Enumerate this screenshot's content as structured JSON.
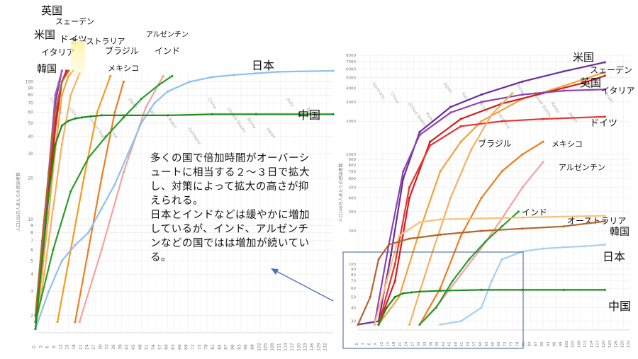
{
  "annotation": "多くの国で倍加時間がオーバーシュートに相当する２～３日で拡大し、対策によって拡大の高さが抑えられる。\n日本とインドなどは緩やかに増加しているが、インド、アルゼンチンなどの国ではは増加が続いている。",
  "left_ylabel": "人口100万人あたりの感染者数",
  "right_ylabel": "人口100万人あたりの感染者数",
  "watermark_labels": [
    "Germany",
    "China",
    "United States",
    "Korea",
    "Japan",
    "Italy",
    "Brazil"
  ],
  "chart_data": [
    {
      "type": "line",
      "yscale": "log",
      "ylim": [
        1.5,
        120
      ],
      "xlim": [
        0,
        135
      ],
      "xticks": [
        0,
        3,
        6,
        9,
        12,
        15,
        18,
        21,
        24,
        27,
        30,
        33,
        36,
        39,
        42,
        45,
        48,
        51,
        54,
        57,
        60,
        63,
        66,
        69,
        72,
        75,
        78,
        81,
        84,
        87,
        90,
        93,
        96,
        99,
        102,
        105,
        108,
        111,
        114,
        117,
        120,
        123,
        126,
        129,
        132
      ],
      "yticks": [
        2,
        3,
        4,
        5,
        6,
        7,
        8,
        9,
        10,
        20,
        30,
        40,
        50,
        60,
        70,
        80,
        90,
        100
      ],
      "grid": true,
      "series": [
        {
          "name": "英国",
          "color": "#e8322e",
          "x": [
            0,
            3,
            6,
            9,
            12,
            15
          ],
          "y": [
            2,
            5,
            15,
            45,
            100,
            120
          ]
        },
        {
          "name": "スェーデン",
          "color": "#f2a33a",
          "x": [
            0,
            3,
            6,
            9,
            12,
            15,
            17
          ],
          "y": [
            1.8,
            4,
            11,
            32,
            80,
            110,
            120
          ]
        },
        {
          "name": "米国",
          "color": "#7b3ea3",
          "x": [
            0,
            3,
            6,
            9,
            12
          ],
          "y": [
            2,
            6,
            20,
            70,
            120
          ]
        },
        {
          "name": "ドイツ",
          "color": "#d61c1c",
          "x": [
            0,
            3,
            6,
            9,
            12,
            14
          ],
          "y": [
            1.8,
            5,
            16,
            50,
            100,
            120
          ]
        },
        {
          "name": "オーストラリア",
          "color": "#f5b060",
          "x": [
            0,
            4,
            8,
            12,
            16,
            20
          ],
          "y": [
            1.6,
            4,
            12,
            35,
            80,
            115
          ]
        },
        {
          "name": "イタリア",
          "color": "#9b59c9",
          "x": [
            0,
            3,
            6,
            9,
            12
          ],
          "y": [
            2,
            6,
            22,
            80,
            120
          ]
        },
        {
          "name": "韓国",
          "color": "#b5652a",
          "x": [
            0,
            3,
            6,
            9,
            12,
            15
          ],
          "y": [
            2,
            7,
            22,
            60,
            100,
            120
          ]
        },
        {
          "name": "ブラジル",
          "color": "#f39c1e",
          "x": [
            10,
            16,
            22,
            28,
            34
          ],
          "y": [
            1.8,
            6,
            20,
            60,
            110
          ]
        },
        {
          "name": "メキシコ",
          "color": "#f07c20",
          "x": [
            18,
            24,
            30,
            36,
            40
          ],
          "y": [
            1.8,
            6,
            20,
            60,
            100
          ]
        },
        {
          "name": "アルゼンチン",
          "color": "#f4a2a2",
          "x": [
            20,
            30,
            40,
            50,
            58
          ],
          "y": [
            1.8,
            6,
            22,
            65,
            110
          ]
        },
        {
          "name": "インド",
          "color": "#2a9d2a",
          "x": [
            0,
            8,
            16,
            24,
            32,
            40,
            48,
            56,
            62
          ],
          "y": [
            1.8,
            6,
            16,
            28,
            40,
            55,
            75,
            95,
            110
          ]
        },
        {
          "name": "日本",
          "color": "#90c0e8",
          "x": [
            0,
            6,
            12,
            18,
            24,
            30,
            36,
            42,
            48,
            54,
            60,
            70,
            80,
            90,
            100,
            110,
            135
          ],
          "y": [
            1.6,
            3,
            5,
            6.5,
            8,
            12,
            18,
            30,
            50,
            70,
            85,
            100,
            108,
            112,
            115,
            118,
            120
          ]
        },
        {
          "name": "中国",
          "color": "#1c8e1c",
          "x": [
            0,
            3,
            6,
            9,
            12,
            15,
            18,
            21,
            25,
            30,
            40,
            60,
            80,
            100,
            120,
            135
          ],
          "y": [
            1.6,
            5,
            15,
            35,
            48,
            52,
            54,
            55,
            56,
            57,
            57,
            57,
            58,
            58,
            58,
            58
          ]
        }
      ]
    },
    {
      "type": "line",
      "yscale": "log",
      "ylim": [
        25,
        8000
      ],
      "xlim": [
        0,
        132
      ],
      "xticks": [
        0,
        3,
        6,
        9,
        12,
        15,
        18,
        21,
        24,
        27,
        30,
        33,
        36,
        39,
        42,
        45,
        48,
        51,
        54,
        57,
        60,
        63,
        66,
        69,
        72,
        75,
        78,
        81,
        84,
        87,
        90,
        93,
        96,
        99,
        102,
        105,
        108,
        111,
        114,
        117,
        120,
        123,
        126,
        129,
        132
      ],
      "yticks": [
        30,
        40,
        50,
        60,
        70,
        80,
        90,
        100,
        200,
        300,
        400,
        500,
        600,
        700,
        800,
        900,
        1000,
        2000,
        3000,
        4000,
        5000,
        6000,
        7000,
        8000
      ],
      "grid": true,
      "inset_box": "lower-left",
      "series": [
        {
          "name": "米国",
          "color": "#6a2da0",
          "x": [
            0,
            10,
            16,
            22,
            30,
            45,
            60,
            80,
            100,
            120
          ],
          "y": [
            28,
            30,
            120,
            600,
            1600,
            2700,
            3500,
            4600,
            5700,
            6900
          ]
        },
        {
          "name": "スェーデン",
          "color": "#f2a33a",
          "x": [
            10,
            20,
            30,
            40,
            50,
            60,
            80,
            100,
            120
          ],
          "y": [
            28,
            50,
            200,
            700,
            1300,
            2000,
            3200,
            4200,
            5600
          ]
        },
        {
          "name": "英国",
          "color": "#d61c1c",
          "x": [
            10,
            18,
            25,
            35,
            50,
            70,
            90,
            110,
            120
          ],
          "y": [
            28,
            70,
            400,
            1300,
            2100,
            2900,
            3600,
            4500,
            5200
          ]
        },
        {
          "name": "イタリア",
          "color": "#8e44ad",
          "x": [
            8,
            15,
            22,
            30,
            45,
            60,
            80,
            100,
            120
          ],
          "y": [
            28,
            150,
            700,
            1500,
            2400,
            3000,
            3500,
            3800,
            3900
          ]
        },
        {
          "name": "ドイツ",
          "color": "#e8322e",
          "x": [
            10,
            18,
            25,
            35,
            50,
            70,
            90,
            120
          ],
          "y": [
            28,
            100,
            500,
            1200,
            1800,
            2000,
            2100,
            2200
          ]
        },
        {
          "name": "ブラジル",
          "color": "#f5b060",
          "x": [
            25,
            35,
            45,
            55,
            65,
            75
          ],
          "y": [
            28,
            110,
            400,
            1100,
            2300,
            3600
          ]
        },
        {
          "name": "メキシコ",
          "color": "#f07c20",
          "x": [
            30,
            40,
            50,
            60,
            70,
            80,
            90
          ],
          "y": [
            28,
            60,
            180,
            400,
            700,
            1000,
            1300
          ]
        },
        {
          "name": "アルゼンチン",
          "color": "#f4a2a2",
          "x": [
            30,
            40,
            50,
            60,
            70,
            80,
            90
          ],
          "y": [
            28,
            45,
            80,
            140,
            260,
            500,
            850
          ]
        },
        {
          "name": "インド",
          "color": "#2a9d2a",
          "x": [
            30,
            38,
            46,
            54,
            62,
            70,
            78
          ],
          "y": [
            28,
            40,
            70,
            110,
            160,
            220,
            300
          ]
        },
        {
          "name": "オーストラリア",
          "color": "#f7c27a",
          "x": [
            8,
            14,
            20,
            30,
            40,
            60,
            80,
            100,
            120
          ],
          "y": [
            28,
            70,
            180,
            240,
            255,
            260,
            265,
            270,
            275
          ]
        },
        {
          "name": "韓国",
          "color": "#b5652a",
          "x": [
            0,
            6,
            10,
            15,
            25,
            40,
            60,
            80,
            100,
            120
          ],
          "y": [
            28,
            50,
            110,
            150,
            170,
            185,
            200,
            210,
            220,
            245
          ]
        },
        {
          "name": "日本",
          "color": "#a8d0f0",
          "x": [
            40,
            50,
            60,
            65,
            70,
            80,
            90,
            100,
            110,
            120
          ],
          "y": [
            28,
            30,
            40,
            70,
            110,
            130,
            138,
            142,
            145,
            150
          ]
        },
        {
          "name": "中国",
          "color": "#1c8e1c",
          "x": [
            10,
            14,
            18,
            22,
            26,
            30,
            40,
            60,
            80,
            100,
            120
          ],
          "y": [
            28,
            40,
            50,
            54,
            55,
            56,
            57,
            58,
            58,
            58,
            58
          ]
        }
      ]
    }
  ]
}
